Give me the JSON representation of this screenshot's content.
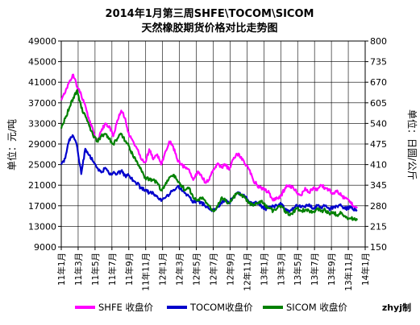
{
  "chart_data": {
    "type": "line",
    "title_line1": "2014年1月第三周SHFE\\TOCOM\\SICOM",
    "title_line2": "天然橡胶期货价格对比走势图",
    "ylabel_left": "单位：元/吨",
    "ylabel_right": "单位：日圆/公斤",
    "credit": "zhyj制",
    "y_left": {
      "min": 9000,
      "max": 49000,
      "ticks": [
        "9000",
        "13000",
        "17000",
        "21000",
        "25000",
        "29000",
        "33000",
        "37000",
        "41000",
        "45000",
        "49000"
      ]
    },
    "y_right": {
      "min": 150,
      "max": 800,
      "ticks": [
        "150",
        "215",
        "280",
        "345",
        "410",
        "475",
        "540",
        "605",
        "670",
        "735",
        "800"
      ]
    },
    "x_range": [
      0,
      38
    ],
    "x_labels": [
      "11年1月",
      "11年3月",
      "11年5月",
      "11年7月",
      "11年9月",
      "11年11月",
      "12年1月",
      "12年3月",
      "12年5月",
      "12年7月",
      "12年9月",
      "12年11月",
      "13年1月",
      "13年3月",
      "13年5月",
      "13年7月",
      "13年9月",
      "13年11月",
      "14年1月"
    ],
    "grid": true,
    "legend_position": "bottom",
    "series": [
      {
        "name": "SHFE 收盘价",
        "axis": "left",
        "color": "#FF00FF",
        "points": [
          [
            0,
            37500
          ],
          [
            0.5,
            39000
          ],
          [
            1,
            41000
          ],
          [
            1.5,
            42500
          ],
          [
            2,
            40000
          ],
          [
            2.5,
            38500
          ],
          [
            3,
            36500
          ],
          [
            3.5,
            33500
          ],
          [
            4,
            31500
          ],
          [
            4.5,
            29500
          ],
          [
            5,
            31500
          ],
          [
            5.5,
            33000
          ],
          [
            6,
            32500
          ],
          [
            6.5,
            30500
          ],
          [
            7,
            33500
          ],
          [
            7.5,
            35500
          ],
          [
            8,
            34000
          ],
          [
            8.5,
            30500
          ],
          [
            9,
            29500
          ],
          [
            9.5,
            28000
          ],
          [
            10,
            26000
          ],
          [
            10.5,
            25500
          ],
          [
            11,
            28000
          ],
          [
            11.5,
            26000
          ],
          [
            12,
            27000
          ],
          [
            12.5,
            25000
          ],
          [
            13,
            27500
          ],
          [
            13.5,
            29500
          ],
          [
            14,
            28500
          ],
          [
            14.5,
            26000
          ],
          [
            15,
            25000
          ],
          [
            15.5,
            24500
          ],
          [
            16,
            24000
          ],
          [
            16.5,
            22000
          ],
          [
            17,
            23500
          ],
          [
            17.5,
            23000
          ],
          [
            18,
            21500
          ],
          [
            18.5,
            22000
          ],
          [
            19,
            24000
          ],
          [
            19.5,
            25000
          ],
          [
            20,
            24500
          ],
          [
            20.5,
            25000
          ],
          [
            21,
            24000
          ],
          [
            21.5,
            26000
          ],
          [
            22,
            27000
          ],
          [
            22.5,
            26500
          ],
          [
            23,
            25000
          ],
          [
            23.5,
            24000
          ],
          [
            24,
            22000
          ],
          [
            24.5,
            21000
          ],
          [
            25,
            20500
          ],
          [
            25.5,
            20000
          ],
          [
            26,
            19500
          ],
          [
            26.5,
            18000
          ],
          [
            27,
            18500
          ],
          [
            27.5,
            19000
          ],
          [
            28,
            20500
          ],
          [
            28.5,
            21000
          ],
          [
            29,
            20500
          ],
          [
            29.5,
            19500
          ],
          [
            30,
            19000
          ],
          [
            30.5,
            20500
          ],
          [
            31,
            19500
          ],
          [
            31.5,
            20500
          ],
          [
            32,
            20000
          ],
          [
            32.5,
            21000
          ],
          [
            33,
            20500
          ],
          [
            33.5,
            20000
          ],
          [
            34,
            19500
          ],
          [
            34.5,
            20000
          ],
          [
            35,
            19000
          ],
          [
            35.5,
            18500
          ],
          [
            36,
            18000
          ],
          [
            36.5,
            17000
          ],
          [
            37,
            16800
          ]
        ]
      },
      {
        "name": "TOCOM收盘价",
        "axis": "right",
        "color": "#0000CC",
        "points": [
          [
            0,
            410
          ],
          [
            0.5,
            430
          ],
          [
            1,
            490
          ],
          [
            1.5,
            500
          ],
          [
            2,
            465
          ],
          [
            2.5,
            380
          ],
          [
            3,
            460
          ],
          [
            3.5,
            440
          ],
          [
            4,
            420
          ],
          [
            4.5,
            400
          ],
          [
            5,
            385
          ],
          [
            5.5,
            400
          ],
          [
            6,
            380
          ],
          [
            6.5,
            385
          ],
          [
            7,
            380
          ],
          [
            7.5,
            390
          ],
          [
            8,
            375
          ],
          [
            8.5,
            375
          ],
          [
            9,
            360
          ],
          [
            9.5,
            350
          ],
          [
            10,
            335
          ],
          [
            10.5,
            330
          ],
          [
            11,
            320
          ],
          [
            11.5,
            320
          ],
          [
            12,
            310
          ],
          [
            12.5,
            295
          ],
          [
            13,
            305
          ],
          [
            13.5,
            315
          ],
          [
            14,
            330
          ],
          [
            14.5,
            340
          ],
          [
            15,
            335
          ],
          [
            15.5,
            320
          ],
          [
            16,
            310
          ],
          [
            16.5,
            290
          ],
          [
            17,
            295
          ],
          [
            17.5,
            290
          ],
          [
            18,
            280
          ],
          [
            18.5,
            270
          ],
          [
            19,
            265
          ],
          [
            19.5,
            275
          ],
          [
            20,
            290
          ],
          [
            20.5,
            300
          ],
          [
            21,
            290
          ],
          [
            21.5,
            305
          ],
          [
            22,
            320
          ],
          [
            22.5,
            315
          ],
          [
            23,
            310
          ],
          [
            23.5,
            290
          ],
          [
            24,
            285
          ],
          [
            24.5,
            290
          ],
          [
            25,
            280
          ],
          [
            25.5,
            270
          ],
          [
            26,
            275
          ],
          [
            26.5,
            280
          ],
          [
            27,
            280
          ],
          [
            27.5,
            285
          ],
          [
            28,
            270
          ],
          [
            28.5,
            260
          ],
          [
            29,
            270
          ],
          [
            29.5,
            280
          ],
          [
            30,
            275
          ],
          [
            30.5,
            275
          ],
          [
            31,
            285
          ],
          [
            31.5,
            270
          ],
          [
            32,
            280
          ],
          [
            32.5,
            275
          ],
          [
            33,
            280
          ],
          [
            33.5,
            270
          ],
          [
            34,
            275
          ],
          [
            34.5,
            278
          ],
          [
            35,
            280
          ],
          [
            35.5,
            270
          ],
          [
            36,
            275
          ],
          [
            36.5,
            268
          ],
          [
            37,
            264
          ]
        ]
      },
      {
        "name": "SICOM 收盘价",
        "axis": "left",
        "color": "#008000",
        "points": [
          [
            0,
            32000
          ],
          [
            0.5,
            34000
          ],
          [
            1,
            36000
          ],
          [
            1.5,
            38000
          ],
          [
            2,
            39500
          ],
          [
            2.5,
            36000
          ],
          [
            3,
            34500
          ],
          [
            3.5,
            32500
          ],
          [
            4,
            30500
          ],
          [
            4.5,
            29500
          ],
          [
            5,
            30500
          ],
          [
            5.5,
            31000
          ],
          [
            6,
            30000
          ],
          [
            6.5,
            29000
          ],
          [
            7,
            30000
          ],
          [
            7.5,
            31000
          ],
          [
            8,
            29500
          ],
          [
            8.5,
            28500
          ],
          [
            9,
            26500
          ],
          [
            9.5,
            25500
          ],
          [
            10,
            24000
          ],
          [
            10.5,
            22500
          ],
          [
            11,
            22000
          ],
          [
            11.5,
            22000
          ],
          [
            12,
            21500
          ],
          [
            12.5,
            20000
          ],
          [
            13,
            21000
          ],
          [
            13.5,
            22500
          ],
          [
            14,
            23000
          ],
          [
            14.5,
            22000
          ],
          [
            15,
            21000
          ],
          [
            15.5,
            20000
          ],
          [
            16,
            20500
          ],
          [
            16.5,
            18500
          ],
          [
            17,
            18000
          ],
          [
            17.5,
            18500
          ],
          [
            18,
            18000
          ],
          [
            18.5,
            17000
          ],
          [
            19,
            16000
          ],
          [
            19.5,
            17000
          ],
          [
            20,
            18500
          ],
          [
            20.5,
            18000
          ],
          [
            21,
            17500
          ],
          [
            21.5,
            18500
          ],
          [
            22,
            19500
          ],
          [
            22.5,
            19000
          ],
          [
            23,
            18500
          ],
          [
            23.5,
            17500
          ],
          [
            24,
            17000
          ],
          [
            24.5,
            17500
          ],
          [
            25,
            17800
          ],
          [
            25.5,
            17000
          ],
          [
            26,
            16500
          ],
          [
            26.5,
            16000
          ],
          [
            27,
            16500
          ],
          [
            27.5,
            17000
          ],
          [
            28,
            16000
          ],
          [
            28.5,
            15200
          ],
          [
            29,
            15800
          ],
          [
            29.5,
            16500
          ],
          [
            30,
            16000
          ],
          [
            30.5,
            16200
          ],
          [
            31,
            16000
          ],
          [
            31.5,
            15800
          ],
          [
            32,
            16500
          ],
          [
            32.5,
            16000
          ],
          [
            33,
            16200
          ],
          [
            33.5,
            15500
          ],
          [
            34,
            15800
          ],
          [
            34.5,
            15200
          ],
          [
            35,
            15600
          ],
          [
            35.5,
            15000
          ],
          [
            36,
            14500
          ],
          [
            36.5,
            14500
          ],
          [
            37,
            14200
          ]
        ]
      }
    ]
  }
}
